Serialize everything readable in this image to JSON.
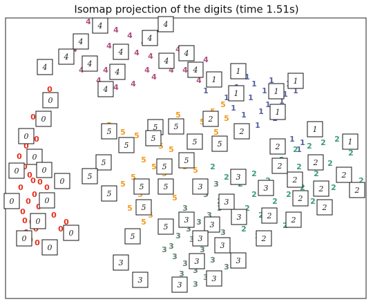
{
  "chart_data": {
    "type": "scatter",
    "title": "Isomap projection of the digits (time 1.51s)",
    "xlim": [
      0,
      522
    ],
    "ylim": [
      0,
      406
    ],
    "series": [
      {
        "name": "0",
        "color": "#e8301c",
        "x": [
          64,
          40,
          30,
          38,
          45,
          28,
          35,
          50,
          22,
          42,
          33,
          48,
          25,
          55,
          38,
          44,
          30,
          52,
          20,
          60,
          45,
          36,
          28,
          58,
          40,
          70,
          80,
          88,
          15,
          46
        ],
        "y": [
          302,
          262,
          220,
          210,
          200,
          190,
          178,
          168,
          160,
          150,
          140,
          132,
          125,
          118,
          110,
          100,
          95,
          180,
          205,
          160,
          230,
          84,
          112,
          140,
          170,
          120,
          100,
          110,
          145,
          80
        ]
      },
      {
        "name": "1",
        "color": "#56609e",
        "x": [
          290,
          305,
          320,
          335,
          350,
          360,
          375,
          385,
          395,
          405,
          410,
          420,
          380,
          370,
          355,
          345,
          330,
          400,
          415,
          390,
          365,
          340,
          425,
          430
        ],
        "y": [
          300,
          310,
          290,
          305,
          320,
          310,
          300,
          315,
          305,
          295,
          310,
          300,
          280,
          270,
          290,
          265,
          275,
          285,
          230,
          260,
          250,
          240,
          215,
          225
        ]
      },
      {
        "name": "2",
        "color": "#3a9a80",
        "x": [
          300,
          320,
          340,
          360,
          380,
          400,
          420,
          440,
          460,
          480,
          500,
          515,
          350,
          370,
          390,
          410,
          430,
          450,
          470,
          330,
          345,
          365,
          385,
          405,
          445,
          475,
          495,
          310,
          360,
          425
        ],
        "y": [
          190,
          175,
          165,
          180,
          170,
          200,
          215,
          220,
          225,
          230,
          210,
          170,
          130,
          120,
          140,
          150,
          160,
          180,
          195,
          110,
          100,
          90,
          125,
          105,
          140,
          160,
          175,
          140,
          150,
          190
        ]
      },
      {
        "name": "3",
        "color": "#5d7f6c",
        "x": [
          230,
          245,
          260,
          275,
          290,
          305,
          320,
          335,
          250,
          265,
          280,
          295,
          310,
          325,
          240,
          255,
          270,
          285,
          300,
          315,
          330,
          290,
          305,
          275,
          260
        ],
        "y": [
          70,
          60,
          50,
          40,
          30,
          25,
          45,
          60,
          90,
          100,
          110,
          120,
          130,
          140,
          75,
          35,
          85,
          70,
          55,
          95,
          115,
          150,
          165,
          20,
          130
        ]
      },
      {
        "name": "4",
        "color": "#b04f7e",
        "x": [
          120,
          140,
          160,
          180,
          200,
          150,
          170,
          190,
          210,
          230,
          100,
          125,
          145,
          250,
          270,
          290,
          240,
          215,
          185,
          160,
          135,
          110,
          260,
          280,
          205
        ],
        "y": [
          400,
          395,
          388,
          380,
          370,
          365,
          360,
          355,
          350,
          345,
          360,
          345,
          330,
          360,
          350,
          345,
          330,
          320,
          310,
          305,
          315,
          330,
          330,
          315,
          330
        ]
      },
      {
        "name": "5",
        "color": "#f29a1a",
        "x": [
          150,
          170,
          190,
          210,
          225,
          240,
          255,
          270,
          285,
          300,
          315,
          320,
          200,
          215,
          230,
          185,
          170,
          195,
          260,
          275,
          290,
          305,
          180,
          210,
          245,
          200,
          225,
          250
        ],
        "y": [
          250,
          240,
          235,
          228,
          220,
          215,
          205,
          230,
          255,
          270,
          280,
          260,
          200,
          190,
          180,
          175,
          165,
          150,
          190,
          185,
          165,
          240,
          130,
          120,
          145,
          110,
          160,
          265
        ]
      }
    ],
    "thumbnails": [
      {
        "digit": "4",
        "x": 137,
        "y": 395
      },
      {
        "digit": "4",
        "x": 232,
        "y": 397
      },
      {
        "digit": "4",
        "x": 109,
        "y": 372
      },
      {
        "digit": "4",
        "x": 209,
        "y": 377
      },
      {
        "digit": "4",
        "x": 88,
        "y": 350
      },
      {
        "digit": "4",
        "x": 122,
        "y": 340
      },
      {
        "digit": "4",
        "x": 167,
        "y": 357
      },
      {
        "digit": "4",
        "x": 262,
        "y": 355
      },
      {
        "digit": "4",
        "x": 57,
        "y": 335
      },
      {
        "digit": "4",
        "x": 162,
        "y": 328
      },
      {
        "digit": "4",
        "x": 233,
        "y": 344
      },
      {
        "digit": "4",
        "x": 275,
        "y": 331
      },
      {
        "digit": "4",
        "x": 145,
        "y": 303
      },
      {
        "digit": "0",
        "x": 65,
        "y": 287
      },
      {
        "digit": "0",
        "x": 55,
        "y": 260
      },
      {
        "digit": "0",
        "x": 30,
        "y": 235
      },
      {
        "digit": "0",
        "x": 42,
        "y": 205
      },
      {
        "digit": "0",
        "x": 16,
        "y": 185
      },
      {
        "digit": "0",
        "x": 56,
        "y": 186
      },
      {
        "digit": "0",
        "x": 82,
        "y": 170
      },
      {
        "digit": "0",
        "x": 9,
        "y": 141
      },
      {
        "digit": "0",
        "x": 60,
        "y": 142
      },
      {
        "digit": "0",
        "x": 47,
        "y": 112
      },
      {
        "digit": "0",
        "x": 27,
        "y": 87
      },
      {
        "digit": "0",
        "x": 64,
        "y": 74
      },
      {
        "digit": "0",
        "x": 95,
        "y": 95
      },
      {
        "digit": "1",
        "x": 302,
        "y": 317
      },
      {
        "digit": "1",
        "x": 337,
        "y": 329
      },
      {
        "digit": "1",
        "x": 420,
        "y": 315
      },
      {
        "digit": "1",
        "x": 334,
        "y": 297
      },
      {
        "digit": "1",
        "x": 392,
        "y": 300
      },
      {
        "digit": "1",
        "x": 394,
        "y": 270
      },
      {
        "digit": "1",
        "x": 448,
        "y": 245
      },
      {
        "digit": "1",
        "x": 499,
        "y": 227
      },
      {
        "digit": "2",
        "x": 297,
        "y": 260
      },
      {
        "digit": "2",
        "x": 342,
        "y": 242
      },
      {
        "digit": "2",
        "x": 394,
        "y": 220
      },
      {
        "digit": "2",
        "x": 397,
        "y": 192
      },
      {
        "digit": "2",
        "x": 449,
        "y": 197
      },
      {
        "digit": "2",
        "x": 490,
        "y": 179
      },
      {
        "digit": "2",
        "x": 457,
        "y": 159
      },
      {
        "digit": "2",
        "x": 509,
        "y": 157
      },
      {
        "digit": "2",
        "x": 419,
        "y": 172
      },
      {
        "digit": "2",
        "x": 427,
        "y": 145
      },
      {
        "digit": "2",
        "x": 462,
        "y": 132
      },
      {
        "digit": "2",
        "x": 417,
        "y": 114
      },
      {
        "digit": "2",
        "x": 382,
        "y": 120
      },
      {
        "digit": "2",
        "x": 374,
        "y": 87
      },
      {
        "digit": "3",
        "x": 337,
        "y": 176
      },
      {
        "digit": "3",
        "x": 282,
        "y": 162
      },
      {
        "digit": "3",
        "x": 320,
        "y": 140
      },
      {
        "digit": "3",
        "x": 377,
        "y": 160
      },
      {
        "digit": "3",
        "x": 299,
        "y": 107
      },
      {
        "digit": "3",
        "x": 338,
        "y": 118
      },
      {
        "digit": "3",
        "x": 262,
        "y": 114
      },
      {
        "digit": "3",
        "x": 282,
        "y": 87
      },
      {
        "digit": "3",
        "x": 314,
        "y": 77
      },
      {
        "digit": "3",
        "x": 277,
        "y": 54
      },
      {
        "digit": "3",
        "x": 337,
        "y": 55
      },
      {
        "digit": "3",
        "x": 302,
        "y": 29
      },
      {
        "digit": "3",
        "x": 252,
        "y": 20
      },
      {
        "digit": "3",
        "x": 195,
        "y": 27
      },
      {
        "digit": "3",
        "x": 167,
        "y": 52
      },
      {
        "digit": "5",
        "x": 150,
        "y": 242
      },
      {
        "digit": "5",
        "x": 217,
        "y": 248
      },
      {
        "digit": "5",
        "x": 247,
        "y": 249
      },
      {
        "digit": "5",
        "x": 175,
        "y": 222
      },
      {
        "digit": "5",
        "x": 274,
        "y": 227
      },
      {
        "digit": "5",
        "x": 310,
        "y": 224
      },
      {
        "digit": "5",
        "x": 142,
        "y": 197
      },
      {
        "digit": "5",
        "x": 122,
        "y": 177
      },
      {
        "digit": "5",
        "x": 214,
        "y": 232
      },
      {
        "digit": "5",
        "x": 230,
        "y": 191
      },
      {
        "digit": "5",
        "x": 262,
        "y": 200
      },
      {
        "digit": "5",
        "x": 197,
        "y": 162
      },
      {
        "digit": "5",
        "x": 232,
        "y": 162
      },
      {
        "digit": "5",
        "x": 150,
        "y": 152
      },
      {
        "digit": "5",
        "x": 200,
        "y": 132
      },
      {
        "digit": "5",
        "x": 232,
        "y": 104
      },
      {
        "digit": "5",
        "x": 184,
        "y": 90
      }
    ]
  }
}
